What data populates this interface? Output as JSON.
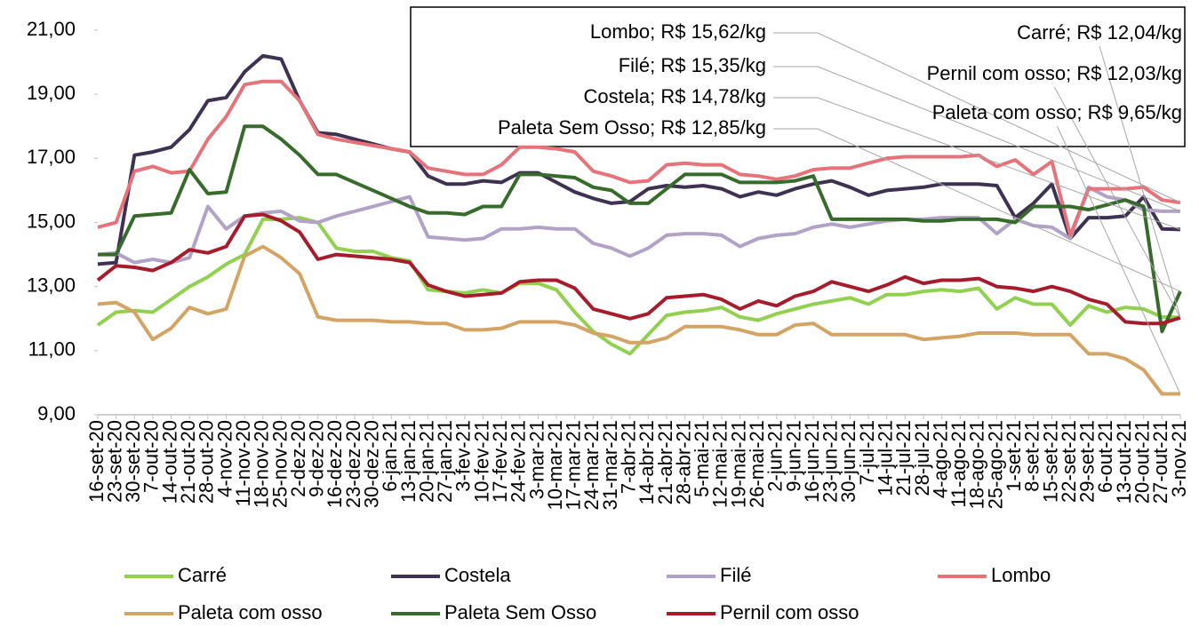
{
  "chart_data": {
    "type": "line",
    "x": [
      "16-set-20",
      "23-set-20",
      "30-set-20",
      "7-out-20",
      "14-out-20",
      "21-out-20",
      "28-out-20",
      "4-nov-20",
      "11-nov-20",
      "18-nov-20",
      "25-nov-20",
      "2-dez-20",
      "9-dez-20",
      "16-dez-20",
      "23-dez-20",
      "30-dez-20",
      "6-jan-21",
      "13-jan-21",
      "20-jan-21",
      "27-jan-21",
      "3-fev-21",
      "10-fev-21",
      "17-fev-21",
      "24-fev-21",
      "3-mar-21",
      "10-mar-21",
      "17-mar-21",
      "24-mar-21",
      "31-mar-21",
      "7-abr-21",
      "14-abr-21",
      "21-abr-21",
      "28-abr-21",
      "5-mai-21",
      "12-mai-21",
      "19-mai-21",
      "26-mai-21",
      "2-jun-21",
      "9-jun-21",
      "16-jun-21",
      "23-jun-21",
      "30-jun-21",
      "7-jul-21",
      "14-jul-21",
      "21-jul-21",
      "28-jul-21",
      "4-ago-21",
      "11-ago-21",
      "18-ago-21",
      "25-ago-21",
      "1-set-21",
      "8-set-21",
      "15-set-21",
      "22-set-21",
      "29-set-21",
      "6-out-21",
      "13-out-21",
      "20-out-21",
      "27-out-21",
      "3-nov-21"
    ],
    "series": [
      {
        "name": "Carré",
        "color": "#92d050",
        "values": [
          11.8,
          12.2,
          12.25,
          12.2,
          12.6,
          13.0,
          13.3,
          13.7,
          14.0,
          15.1,
          15.1,
          15.15,
          15.0,
          14.2,
          14.1,
          14.1,
          13.9,
          13.8,
          12.9,
          12.85,
          12.8,
          12.9,
          12.8,
          13.1,
          13.1,
          12.9,
          12.2,
          11.6,
          11.2,
          10.9,
          11.5,
          12.1,
          12.2,
          12.25,
          12.35,
          12.05,
          11.95,
          12.15,
          12.3,
          12.45,
          12.55,
          12.65,
          12.45,
          12.75,
          12.75,
          12.85,
          12.9,
          12.85,
          12.95,
          12.3,
          12.65,
          12.45,
          12.45,
          11.8,
          12.4,
          12.2,
          12.35,
          12.3,
          12.05,
          12.04
        ]
      },
      {
        "name": "Costela",
        "color": "#3f3151",
        "values": [
          13.7,
          13.75,
          17.1,
          17.2,
          17.35,
          17.9,
          18.8,
          18.9,
          19.7,
          20.2,
          20.1,
          18.8,
          17.8,
          17.75,
          17.6,
          17.45,
          17.3,
          17.2,
          16.45,
          16.2,
          16.2,
          16.3,
          16.25,
          16.55,
          16.55,
          16.25,
          15.95,
          15.75,
          15.6,
          15.65,
          16.05,
          16.15,
          16.1,
          16.15,
          16.05,
          15.8,
          15.95,
          15.85,
          16.05,
          16.2,
          16.3,
          16.1,
          15.85,
          16.0,
          16.05,
          16.1,
          16.2,
          16.2,
          16.2,
          16.15,
          15.15,
          15.6,
          16.2,
          14.5,
          15.15,
          15.15,
          15.2,
          15.8,
          14.8,
          14.78
        ]
      },
      {
        "name": "Filé",
        "color": "#b3a2c7",
        "values": [
          14.0,
          14.05,
          13.75,
          13.85,
          13.75,
          13.9,
          15.5,
          14.8,
          15.2,
          15.3,
          15.35,
          15.05,
          15.0,
          15.2,
          15.35,
          15.5,
          15.65,
          15.8,
          14.55,
          14.5,
          14.45,
          14.5,
          14.8,
          14.8,
          14.85,
          14.8,
          14.8,
          14.35,
          14.2,
          13.95,
          14.2,
          14.6,
          14.65,
          14.65,
          14.6,
          14.25,
          14.5,
          14.6,
          14.65,
          14.85,
          14.95,
          14.85,
          14.95,
          15.05,
          15.1,
          15.1,
          15.15,
          15.15,
          15.15,
          14.65,
          15.1,
          14.9,
          14.85,
          14.5,
          16.1,
          15.8,
          15.7,
          15.4,
          15.35,
          15.35
        ]
      },
      {
        "name": "Lombo",
        "color": "#e6737a",
        "values": [
          14.85,
          15.0,
          16.6,
          16.75,
          16.55,
          16.6,
          17.6,
          18.3,
          19.3,
          19.4,
          19.4,
          18.8,
          17.75,
          17.6,
          17.5,
          17.4,
          17.3,
          17.2,
          16.7,
          16.6,
          16.5,
          16.5,
          16.8,
          17.35,
          17.35,
          17.3,
          17.2,
          16.6,
          16.45,
          16.25,
          16.3,
          16.8,
          16.85,
          16.8,
          16.8,
          16.5,
          16.45,
          16.35,
          16.45,
          16.65,
          16.7,
          16.7,
          16.85,
          17.0,
          17.05,
          17.05,
          17.05,
          17.05,
          17.1,
          16.75,
          16.95,
          16.5,
          16.9,
          14.6,
          16.05,
          16.05,
          16.05,
          16.1,
          15.7,
          15.62
        ]
      },
      {
        "name": "Paleta com osso",
        "color": "#d4a464",
        "values": [
          12.45,
          12.5,
          12.2,
          11.35,
          11.7,
          12.35,
          12.15,
          12.3,
          13.95,
          14.25,
          13.9,
          13.4,
          12.05,
          11.95,
          11.95,
          11.95,
          11.9,
          11.9,
          11.85,
          11.85,
          11.65,
          11.65,
          11.7,
          11.9,
          11.9,
          11.9,
          11.8,
          11.55,
          11.45,
          11.25,
          11.25,
          11.4,
          11.75,
          11.75,
          11.75,
          11.65,
          11.5,
          11.5,
          11.8,
          11.85,
          11.5,
          11.5,
          11.5,
          11.5,
          11.5,
          11.35,
          11.4,
          11.45,
          11.55,
          11.55,
          11.55,
          11.5,
          11.5,
          11.5,
          10.9,
          10.9,
          10.75,
          10.4,
          9.65,
          9.65
        ]
      },
      {
        "name": "Paleta Sem Osso",
        "color": "#376b2c",
        "values": [
          14.0,
          14.0,
          15.2,
          15.25,
          15.3,
          16.65,
          15.9,
          15.95,
          18.0,
          18.0,
          17.6,
          17.1,
          16.5,
          16.5,
          16.25,
          16.0,
          15.75,
          15.5,
          15.3,
          15.3,
          15.25,
          15.5,
          15.5,
          16.5,
          16.5,
          16.45,
          16.4,
          16.1,
          16.0,
          15.6,
          15.6,
          16.05,
          16.5,
          16.5,
          16.5,
          16.25,
          16.25,
          16.25,
          16.3,
          16.45,
          15.1,
          15.1,
          15.1,
          15.1,
          15.1,
          15.05,
          15.05,
          15.1,
          15.1,
          15.1,
          15.0,
          15.5,
          15.5,
          15.5,
          15.4,
          15.55,
          15.7,
          15.5,
          11.6,
          12.85
        ]
      },
      {
        "name": "Pernil com osso",
        "color": "#a51d2d",
        "values": [
          13.2,
          13.65,
          13.6,
          13.5,
          13.75,
          14.15,
          14.05,
          14.25,
          15.2,
          15.25,
          15.05,
          14.7,
          13.85,
          14.0,
          13.95,
          13.9,
          13.85,
          13.75,
          13.05,
          12.85,
          12.7,
          12.75,
          12.8,
          13.15,
          13.2,
          13.2,
          12.95,
          12.3,
          12.15,
          12.0,
          12.15,
          12.65,
          12.7,
          12.75,
          12.6,
          12.3,
          12.55,
          12.4,
          12.7,
          12.85,
          13.15,
          13.0,
          12.85,
          13.05,
          13.3,
          13.1,
          13.2,
          13.2,
          13.25,
          13.0,
          12.95,
          12.85,
          13.0,
          12.85,
          12.6,
          12.45,
          11.9,
          11.85,
          11.85,
          12.03
        ]
      }
    ],
    "ylim": [
      9,
      21
    ],
    "yticks": [
      {
        "value": 9,
        "label": "9,00"
      },
      {
        "value": 11,
        "label": "11,00"
      },
      {
        "value": 13,
        "label": "13,00"
      },
      {
        "value": 15,
        "label": "15,00"
      },
      {
        "value": 17,
        "label": "17,00"
      },
      {
        "value": 19,
        "label": "19,00"
      },
      {
        "value": 21,
        "label": "21,00"
      }
    ],
    "annotations": [
      "Lombo; R$ 15,62/kg",
      "Filé; R$ 15,35/kg",
      "Costela; R$ 14,78/kg",
      "Paleta Sem Osso; R$ 12,85/kg",
      "Carré; R$ 12,04/kg",
      "Pernil com osso; R$ 12,03/kg",
      "Paleta com osso; R$ 9,65/kg"
    ],
    "legend": "bottom"
  }
}
